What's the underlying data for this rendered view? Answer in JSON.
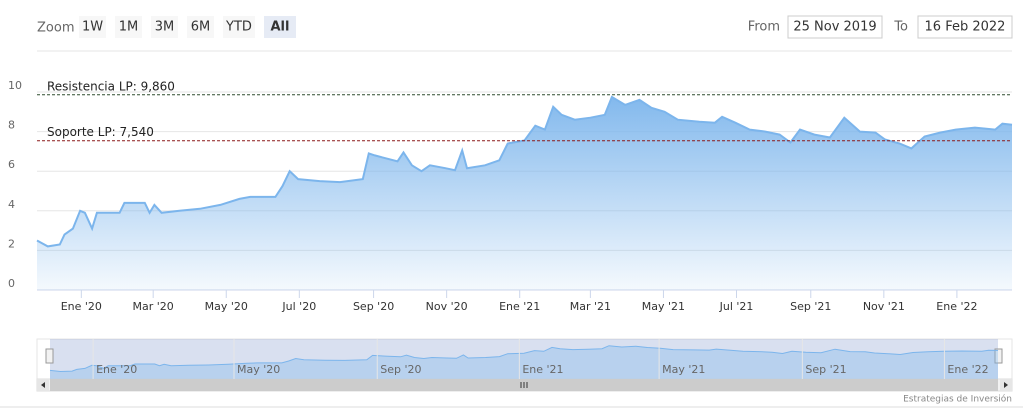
{
  "range_selector": {
    "label": "Zoom",
    "buttons": [
      "1W",
      "1M",
      "3M",
      "6M",
      "YTD",
      "All"
    ],
    "selected": 5,
    "from_label": "From",
    "from": "25 Nov 2019",
    "to_label": "To",
    "to": "16 Feb 2022"
  },
  "chart_data": {
    "type": "area",
    "x": [
      "2019-11-25",
      "2019-12-04",
      "2019-12-14",
      "2019-12-18",
      "2019-12-25",
      "2019-12-31",
      "2020-01-04",
      "2020-01-10",
      "2020-01-14",
      "2020-01-25",
      "2020-02-02",
      "2020-02-06",
      "2020-02-23",
      "2020-02-27",
      "2020-03-02",
      "2020-03-08",
      "2020-03-23",
      "2020-04-09",
      "2020-04-26",
      "2020-05-12",
      "2020-05-21",
      "2020-06-11",
      "2020-06-17",
      "2020-06-23",
      "2020-06-30",
      "2020-07-18",
      "2020-08-04",
      "2020-08-23",
      "2020-08-28",
      "2020-09-02",
      "2020-09-08",
      "2020-09-21",
      "2020-09-26",
      "2020-10-03",
      "2020-10-11",
      "2020-10-18",
      "2020-10-31",
      "2020-11-08",
      "2020-11-14",
      "2020-11-18",
      "2020-12-03",
      "2020-12-15",
      "2020-12-22",
      "2021-01-05",
      "2021-01-14",
      "2021-01-22",
      "2021-01-29",
      "2021-02-05",
      "2021-02-16",
      "2021-03-01",
      "2021-03-13",
      "2021-03-19",
      "2021-03-30",
      "2021-04-11",
      "2021-04-21",
      "2021-05-02",
      "2021-05-13",
      "2021-05-31",
      "2021-06-13",
      "2021-06-19",
      "2021-06-30",
      "2021-07-12",
      "2021-07-25",
      "2021-08-06",
      "2021-08-15",
      "2021-08-23",
      "2021-09-04",
      "2021-09-17",
      "2021-09-29",
      "2021-10-12",
      "2021-10-25",
      "2021-11-02",
      "2021-11-14",
      "2021-11-24",
      "2021-12-05",
      "2021-12-18",
      "2021-12-31",
      "2022-01-16",
      "2022-02-02",
      "2022-02-08",
      "2022-02-16"
    ],
    "series": [
      {
        "color": "#7cb5ec",
        "values": [
          2.5,
          2.2,
          2.3,
          2.8,
          3.1,
          4.0,
          3.9,
          3.1,
          3.9,
          3.9,
          3.9,
          4.4,
          4.4,
          3.9,
          4.3,
          3.9,
          4.0,
          4.1,
          4.3,
          4.6,
          4.7,
          4.7,
          5.25,
          6.0,
          5.6,
          5.5,
          5.45,
          5.6,
          6.9,
          6.8,
          6.7,
          6.5,
          6.95,
          6.3,
          6.0,
          6.3,
          6.15,
          6.05,
          7.05,
          6.15,
          6.3,
          6.55,
          7.4,
          7.55,
          8.3,
          8.1,
          9.25,
          8.85,
          8.6,
          8.7,
          8.85,
          9.75,
          9.35,
          9.6,
          9.2,
          9.0,
          8.6,
          8.5,
          8.45,
          8.75,
          8.45,
          8.1,
          8.0,
          7.85,
          7.45,
          8.1,
          7.85,
          7.7,
          8.7,
          8.0,
          7.95,
          7.6,
          7.4,
          7.15,
          7.75,
          7.95,
          8.1,
          8.2,
          8.1,
          8.4,
          8.35
        ]
      }
    ],
    "xlim": [
      "2019-11-25",
      "2022-02-16"
    ],
    "xticks": [
      {
        "value": "2020-01-01",
        "label": "Ene '20"
      },
      {
        "value": "2020-03-01",
        "label": "Mar '20"
      },
      {
        "value": "2020-05-01",
        "label": "May '20"
      },
      {
        "value": "2020-07-01",
        "label": "Jul '20"
      },
      {
        "value": "2020-09-01",
        "label": "Sep '20"
      },
      {
        "value": "2020-11-01",
        "label": "Nov '20"
      },
      {
        "value": "2021-01-01",
        "label": "Ene '21"
      },
      {
        "value": "2021-03-01",
        "label": "Mar '21"
      },
      {
        "value": "2021-05-01",
        "label": "May '21"
      },
      {
        "value": "2021-07-01",
        "label": "Jul '21"
      },
      {
        "value": "2021-09-01",
        "label": "Sep '21"
      },
      {
        "value": "2021-11-01",
        "label": "Nov '21"
      },
      {
        "value": "2022-01-01",
        "label": "Ene '22"
      }
    ],
    "ylim": [
      0,
      10
    ],
    "yticks": [
      0,
      2,
      4,
      6,
      8,
      10
    ],
    "grid": true,
    "annotations": [
      {
        "label": "Resistencia LP: 9,860",
        "value": 9.86,
        "color": "#2e4d2e"
      },
      {
        "label": "Soporte LP: 7,540",
        "value": 7.54,
        "color": "#8b1a1a"
      }
    ],
    "credit": "Estrategias de Inversión"
  }
}
